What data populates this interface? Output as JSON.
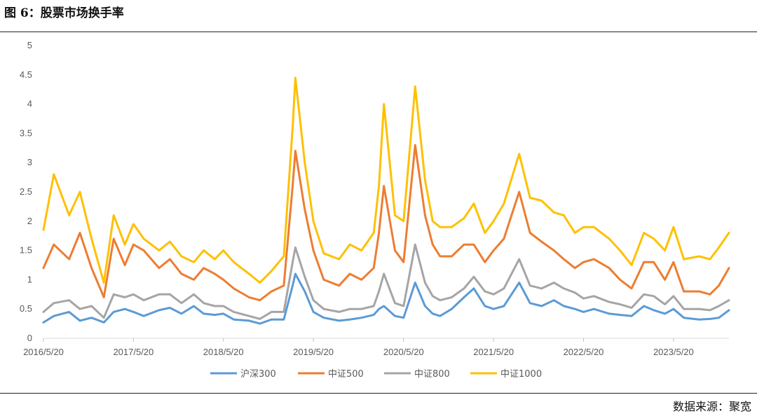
{
  "header": {
    "title": "图 6：股票市场换手率"
  },
  "footer": {
    "source": "数据来源：聚宽"
  },
  "chart_data": {
    "type": "line",
    "title": "图 6：股票市场换手率",
    "xlabel": "",
    "ylabel": "",
    "xlim": [
      "2016-05-20",
      "2023-12-31"
    ],
    "ylim": [
      0,
      5
    ],
    "yticks": [
      0,
      0.5,
      1,
      1.5,
      2,
      2.5,
      3,
      3.5,
      4,
      4.5,
      5
    ],
    "ytick_labels": [
      "0",
      "0.5",
      "1",
      "1.5",
      "2",
      "2.5",
      "3",
      "3.5",
      "4",
      "4.5",
      "5"
    ],
    "xtick_labels": [
      "2016/5/20",
      "2017/5/20",
      "2018/5/20",
      "2019/5/20",
      "2020/5/20",
      "2021/5/20",
      "2022/5/20",
      "2023/5/20"
    ],
    "xtick_dates": [
      "2016-05-20",
      "2017-05-20",
      "2018-05-20",
      "2019-05-20",
      "2020-05-20",
      "2021-05-20",
      "2022-05-20",
      "2023-05-20"
    ],
    "grid": false,
    "legend_position": "bottom",
    "x": [
      "2016-05-20",
      "2016-07-01",
      "2016-09-01",
      "2016-10-15",
      "2016-12-01",
      "2017-01-20",
      "2017-03-01",
      "2017-04-15",
      "2017-05-20",
      "2017-07-01",
      "2017-09-01",
      "2017-10-15",
      "2017-12-01",
      "2018-01-20",
      "2018-03-01",
      "2018-04-15",
      "2018-05-20",
      "2018-07-01",
      "2018-09-01",
      "2018-10-15",
      "2018-12-01",
      "2019-01-20",
      "2019-02-25",
      "2019-03-08",
      "2019-04-15",
      "2019-05-20",
      "2019-07-01",
      "2019-09-01",
      "2019-10-15",
      "2019-12-01",
      "2020-01-20",
      "2020-02-10",
      "2020-03-01",
      "2020-04-15",
      "2020-05-20",
      "2020-07-06",
      "2020-08-15",
      "2020-09-15",
      "2020-10-15",
      "2020-12-01",
      "2021-01-20",
      "2021-03-01",
      "2021-04-15",
      "2021-05-20",
      "2021-07-01",
      "2021-09-01",
      "2021-10-15",
      "2021-12-01",
      "2022-01-20",
      "2022-03-01",
      "2022-04-15",
      "2022-05-20",
      "2022-07-01",
      "2022-09-01",
      "2022-10-15",
      "2022-12-01",
      "2023-01-20",
      "2023-03-01",
      "2023-04-15",
      "2023-05-20",
      "2023-07-01",
      "2023-09-01",
      "2023-10-15",
      "2023-11-20",
      "2023-12-31"
    ],
    "series": [
      {
        "name": "沪深300",
        "color": "#5B9BD5",
        "values": [
          0.27,
          0.38,
          0.45,
          0.3,
          0.35,
          0.27,
          0.45,
          0.5,
          0.45,
          0.38,
          0.48,
          0.52,
          0.42,
          0.55,
          0.42,
          0.4,
          0.42,
          0.32,
          0.3,
          0.25,
          0.32,
          0.32,
          0.9,
          1.1,
          0.8,
          0.45,
          0.35,
          0.3,
          0.32,
          0.35,
          0.4,
          0.5,
          0.55,
          0.38,
          0.35,
          0.95,
          0.55,
          0.42,
          0.38,
          0.5,
          0.7,
          0.85,
          0.55,
          0.5,
          0.55,
          0.95,
          0.6,
          0.55,
          0.65,
          0.55,
          0.5,
          0.45,
          0.5,
          0.42,
          0.4,
          0.38,
          0.55,
          0.48,
          0.42,
          0.5,
          0.35,
          0.32,
          0.33,
          0.35,
          0.48
        ]
      },
      {
        "name": "中证500",
        "color": "#ED7D31",
        "values": [
          1.2,
          1.6,
          1.35,
          1.8,
          1.2,
          0.7,
          1.7,
          1.25,
          1.6,
          1.5,
          1.2,
          1.35,
          1.1,
          1.0,
          1.2,
          1.1,
          1.0,
          0.85,
          0.7,
          0.65,
          0.8,
          0.9,
          2.6,
          3.2,
          2.2,
          1.5,
          1.0,
          0.9,
          1.1,
          1.0,
          1.2,
          1.8,
          2.6,
          1.5,
          1.3,
          3.3,
          2.1,
          1.6,
          1.4,
          1.4,
          1.6,
          1.6,
          1.3,
          1.5,
          1.7,
          2.5,
          1.8,
          1.65,
          1.5,
          1.35,
          1.2,
          1.3,
          1.35,
          1.2,
          1.0,
          0.85,
          1.3,
          1.3,
          1.0,
          1.3,
          0.8,
          0.8,
          0.75,
          0.9,
          1.2
        ]
      },
      {
        "name": "中证800",
        "color": "#A5A5A5",
        "values": [
          0.45,
          0.6,
          0.65,
          0.5,
          0.55,
          0.35,
          0.75,
          0.7,
          0.75,
          0.65,
          0.75,
          0.75,
          0.6,
          0.75,
          0.6,
          0.55,
          0.55,
          0.45,
          0.38,
          0.33,
          0.45,
          0.45,
          1.3,
          1.55,
          1.05,
          0.65,
          0.5,
          0.45,
          0.5,
          0.5,
          0.55,
          0.8,
          1.1,
          0.6,
          0.55,
          1.6,
          0.95,
          0.72,
          0.65,
          0.7,
          0.85,
          1.05,
          0.8,
          0.75,
          0.85,
          1.35,
          0.9,
          0.85,
          0.95,
          0.85,
          0.78,
          0.68,
          0.72,
          0.62,
          0.58,
          0.52,
          0.75,
          0.72,
          0.58,
          0.72,
          0.5,
          0.5,
          0.48,
          0.55,
          0.65
        ]
      },
      {
        "name": "中证1000",
        "color": "#FFC000",
        "values": [
          1.85,
          2.8,
          2.1,
          2.5,
          1.7,
          0.95,
          2.1,
          1.6,
          1.95,
          1.7,
          1.5,
          1.65,
          1.4,
          1.3,
          1.5,
          1.35,
          1.5,
          1.3,
          1.1,
          0.95,
          1.15,
          1.4,
          3.6,
          4.45,
          3.0,
          2.0,
          1.45,
          1.35,
          1.6,
          1.5,
          1.8,
          2.6,
          4.0,
          2.1,
          2.0,
          4.3,
          2.7,
          2.0,
          1.9,
          1.9,
          2.05,
          2.3,
          1.8,
          2.0,
          2.3,
          3.15,
          2.4,
          2.35,
          2.15,
          2.1,
          1.8,
          1.9,
          1.9,
          1.7,
          1.5,
          1.25,
          1.8,
          1.7,
          1.5,
          1.9,
          1.35,
          1.4,
          1.35,
          1.55,
          1.8
        ]
      }
    ]
  }
}
